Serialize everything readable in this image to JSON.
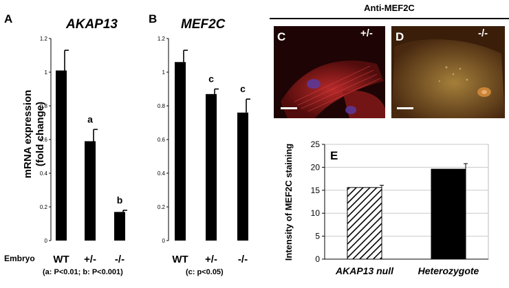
{
  "panels": {
    "a_letter": "A",
    "b_letter": "B",
    "e_letter": "E",
    "c_letter": "C",
    "d_letter": "D",
    "c_genotype": "+/-",
    "d_genotype": "-/-"
  },
  "header_right": "Anti-MEF2C",
  "row_label": "Embryo",
  "y_axis_label_line1": "mRNA expression",
  "y_axis_label_line2": "(fold change)",
  "note_a": "(a: P<0.01; b: P<0.001)",
  "note_b": "(c: p<0.05)",
  "chart_data": [
    {
      "id": "A",
      "type": "bar",
      "title": "AKAP13",
      "ylabel": "mRNA expression (fold change)",
      "categories": [
        "WT",
        "+/-",
        "-/-"
      ],
      "values": [
        1.01,
        0.59,
        0.17
      ],
      "errors": [
        0.12,
        0.07,
        0.01
      ],
      "labels": [
        "",
        "a",
        "b"
      ],
      "ylim": [
        0,
        1.2
      ],
      "yticks": [
        "0",
        "0.2",
        "0.4",
        "0.6",
        "0.8",
        "1",
        "1.2"
      ],
      "grid": false
    },
    {
      "id": "B",
      "type": "bar",
      "title": "MEF2C",
      "categories": [
        "WT",
        "+/-",
        "-/-"
      ],
      "values": [
        1.06,
        0.87,
        0.76
      ],
      "errors": [
        0.07,
        0.03,
        0.08
      ],
      "labels": [
        "",
        "c",
        "c"
      ],
      "ylim": [
        0,
        1.2
      ],
      "yticks": [
        "0",
        "0.2",
        "0.4",
        "0.6",
        "0.8",
        "1",
        "1.2"
      ],
      "grid": false
    },
    {
      "id": "E",
      "type": "bar",
      "ylabel": "Intensity of MEF2C staining",
      "categories": [
        "AKAP13 null",
        "Heterozygote"
      ],
      "values": [
        15.6,
        19.6
      ],
      "errors": [
        0.5,
        1.2
      ],
      "ylim": [
        0,
        25
      ],
      "yticks": [
        "0",
        "5",
        "10",
        "15",
        "20",
        "25"
      ],
      "grid": true,
      "fills": [
        "hatched",
        "black"
      ]
    }
  ],
  "colors": {
    "bar": "#000000",
    "grid": "#c8c8c8",
    "micro_c_bg": "#2a0606",
    "micro_d_bg": "#4a2c10"
  }
}
